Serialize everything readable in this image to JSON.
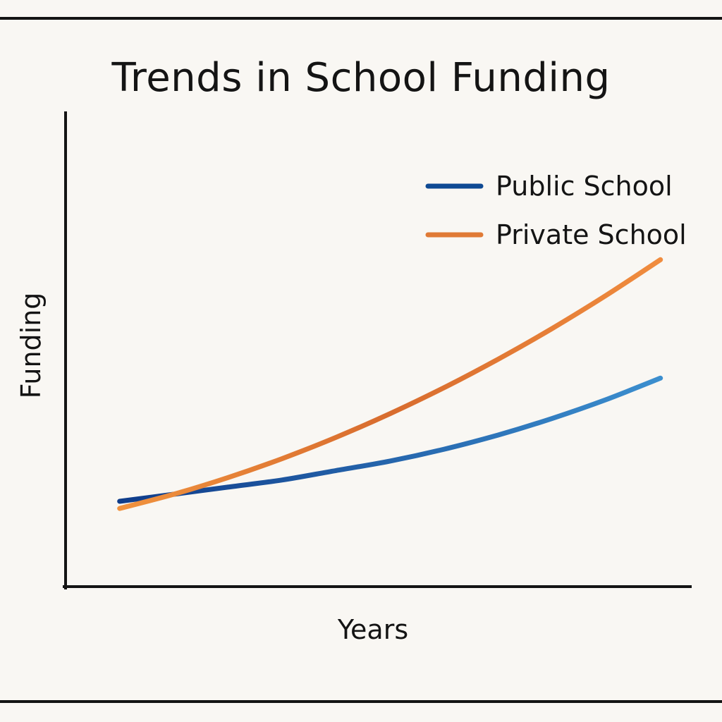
{
  "chart_data": {
    "type": "line",
    "title": "Trends in School Funding",
    "xlabel": "Years",
    "ylabel": "Funding",
    "x": [
      0,
      1,
      2,
      3,
      4,
      5,
      6,
      7,
      8,
      9,
      10
    ],
    "xlim": [
      -1,
      10.5
    ],
    "ylim": [
      0,
      100
    ],
    "grid": false,
    "legend_position": "top-right",
    "series": [
      {
        "name": "Public School",
        "color": "#1f5fa8",
        "values": [
          18,
          19.5,
          21,
          22.5,
          24.5,
          26.5,
          29,
          32,
          35.5,
          39.5,
          44
        ]
      },
      {
        "name": "Private School",
        "color": "#e07a35",
        "values": [
          16.5,
          19.5,
          23,
          27,
          31.5,
          36.5,
          42,
          48,
          54.5,
          61.5,
          69
        ]
      }
    ]
  }
}
